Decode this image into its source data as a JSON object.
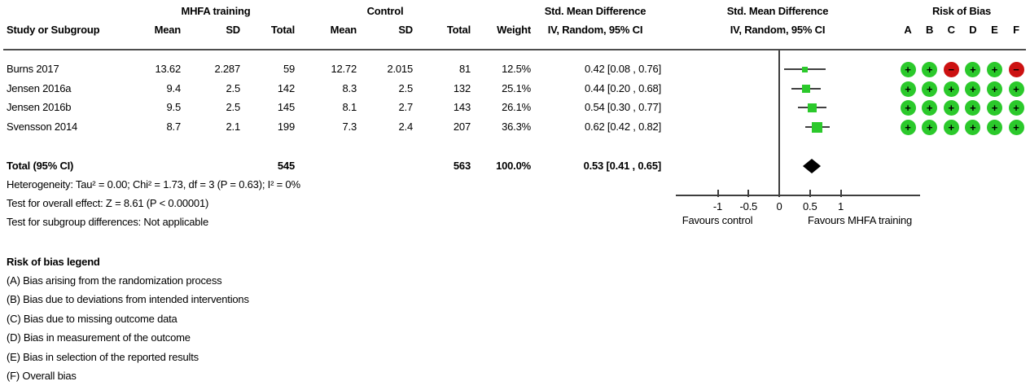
{
  "table": {
    "group1": "MHFA training",
    "group2": "Control",
    "headers": {
      "study": "Study or Subgroup",
      "mean": "Mean",
      "sd": "SD",
      "total": "Total",
      "weight": "Weight",
      "smd_line1": "Std. Mean Difference",
      "smd_line2": "IV, Random, 95% CI"
    },
    "rows": [
      {
        "study": "Burns 2017",
        "mean1": "13.62",
        "sd1": "2.287",
        "total1": "59",
        "mean2": "12.72",
        "sd2": "2.015",
        "total2": "81",
        "weight": "12.5%",
        "smd_ci": "0.42 [0.08 , 0.76]",
        "rob": [
          "+",
          "+",
          "−",
          "+",
          "+",
          "−"
        ]
      },
      {
        "study": "Jensen 2016a",
        "mean1": "9.4",
        "sd1": "2.5",
        "total1": "142",
        "mean2": "8.3",
        "sd2": "2.5",
        "total2": "132",
        "weight": "25.1%",
        "smd_ci": "0.44 [0.20 , 0.68]",
        "rob": [
          "+",
          "+",
          "+",
          "+",
          "+",
          "+"
        ]
      },
      {
        "study": "Jensen 2016b",
        "mean1": "9.5",
        "sd1": "2.5",
        "total1": "145",
        "mean2": "8.1",
        "sd2": "2.7",
        "total2": "143",
        "weight": "26.1%",
        "smd_ci": "0.54 [0.30 , 0.77]",
        "rob": [
          "+",
          "+",
          "+",
          "+",
          "+",
          "+"
        ]
      },
      {
        "study": "Svensson 2014",
        "mean1": "8.7",
        "sd1": "2.1",
        "total1": "199",
        "mean2": "7.3",
        "sd2": "2.4",
        "total2": "207",
        "weight": "36.3%",
        "smd_ci": "0.62 [0.42 , 0.82]",
        "rob": [
          "+",
          "+",
          "+",
          "+",
          "+",
          "+"
        ]
      }
    ],
    "total_row": {
      "label": "Total (95% CI)",
      "total1": "545",
      "total2": "563",
      "weight": "100.0%",
      "smd_ci": "0.53 [0.41 , 0.65]"
    },
    "footnotes": {
      "heterogeneity": "Heterogeneity: Tau² = 0.00; Chi² = 1.73, df = 3 (P = 0.63); I² = 0%",
      "overall_effect": "Test for overall effect: Z = 8.61 (P < 0.00001)",
      "subgroup": "Test for subgroup differences: Not applicable"
    }
  },
  "rob": {
    "title": "Risk of Bias",
    "cols": [
      "A",
      "B",
      "C",
      "D",
      "E",
      "F"
    ],
    "legend_title": "Risk of bias legend",
    "legend": [
      "(A) Bias arising from the randomization process",
      "(B) Bias due to deviations from intended interventions",
      "(C) Bias due to missing outcome data",
      "(D) Bias in measurement of the outcome",
      "(E) Bias in selection of the reported results",
      "(F) Overall bias"
    ]
  },
  "axis": {
    "favours_left": "Favours control",
    "favours_right": "Favours MHFA training"
  },
  "colors": {
    "rob_low": "#2BC92B",
    "rob_high": "#CC1111",
    "marker_green": "#2BC92B",
    "line_gray": "#404040",
    "diamond_black": "#000000"
  },
  "chart_data": {
    "type": "forest",
    "effect_measure": "Std. Mean Difference",
    "model": "IV, Random, 95% CI",
    "studies": [
      {
        "name": "Burns 2017",
        "est": 0.42,
        "ci": [
          0.08,
          0.76
        ],
        "weight_pct": 12.5,
        "rob": [
          "low",
          "low",
          "high",
          "low",
          "low",
          "high"
        ]
      },
      {
        "name": "Jensen 2016a",
        "est": 0.44,
        "ci": [
          0.2,
          0.68
        ],
        "weight_pct": 25.1,
        "rob": [
          "low",
          "low",
          "low",
          "low",
          "low",
          "low"
        ]
      },
      {
        "name": "Jensen 2016b",
        "est": 0.54,
        "ci": [
          0.3,
          0.77
        ],
        "weight_pct": 26.1,
        "rob": [
          "low",
          "low",
          "low",
          "low",
          "low",
          "low"
        ]
      },
      {
        "name": "Svensson 2014",
        "est": 0.62,
        "ci": [
          0.42,
          0.82
        ],
        "weight_pct": 36.3,
        "rob": [
          "low",
          "low",
          "low",
          "low",
          "low",
          "low"
        ]
      }
    ],
    "total": {
      "name": "Total (95% CI)",
      "est": 0.53,
      "ci": [
        0.41,
        0.65
      ],
      "weight_pct": 100.0,
      "n_experimental": 545,
      "n_control": 563
    },
    "heterogeneity": {
      "tau2": 0.0,
      "chi2": 1.73,
      "df": 3,
      "p": 0.63,
      "i2_pct": 0
    },
    "overall_effect": {
      "z": 8.61,
      "p": "< 0.00001"
    },
    "axis": {
      "ticks": [
        -1,
        -0.5,
        0,
        0.5,
        1
      ],
      "xlim": [
        -1.68,
        1.62
      ],
      "favours_left": "Favours control",
      "favours_right": "Favours MHFA training"
    },
    "legend_position": "none",
    "grid": false
  }
}
